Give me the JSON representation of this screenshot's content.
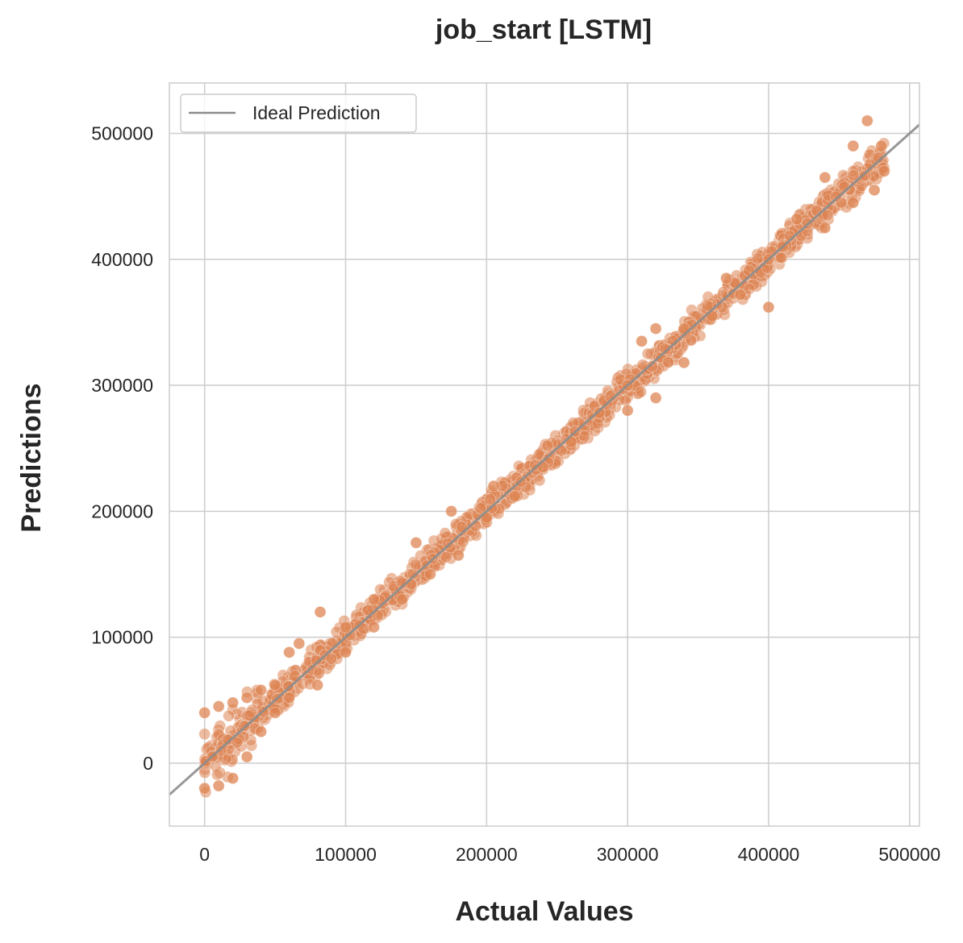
{
  "chart_data": {
    "type": "scatter",
    "title": "job_start [LSTM]",
    "xlabel": "Actual Values",
    "ylabel": "Predictions",
    "xlim": [
      -25000,
      507000
    ],
    "ylim": [
      -50000,
      540000
    ],
    "x_ticks": [
      0,
      100000,
      200000,
      300000,
      400000,
      500000
    ],
    "y_ticks": [
      0,
      100000,
      200000,
      300000,
      400000,
      500000
    ],
    "grid": true,
    "legend_position": "top-left",
    "series": [
      {
        "label_color": "#dd8452",
        "points_description_free": true,
        "trend": [
          [
            0,
            -20000
          ],
          [
            0,
            40000
          ],
          [
            10000,
            -18000
          ],
          [
            10000,
            45000
          ],
          [
            20000,
            -12000
          ],
          [
            20000,
            48000
          ],
          [
            30000,
            5000
          ],
          [
            30000,
            52000
          ],
          [
            40000,
            25000
          ],
          [
            40000,
            58000
          ],
          [
            50000,
            40000
          ],
          [
            50000,
            62000
          ],
          [
            60000,
            52000
          ],
          [
            60000,
            88000
          ],
          [
            67000,
            95000
          ],
          [
            80000,
            62000
          ],
          [
            82000,
            120000
          ],
          [
            100000,
            88000
          ],
          [
            100000,
            108000
          ],
          [
            120000,
            108000
          ],
          [
            120000,
            130000
          ],
          [
            140000,
            130000
          ],
          [
            150000,
            175000
          ],
          [
            160000,
            150000
          ],
          [
            175000,
            200000
          ],
          [
            180000,
            165000
          ],
          [
            200000,
            195000
          ],
          [
            205000,
            220000
          ],
          [
            220000,
            212000
          ],
          [
            240000,
            235000
          ],
          [
            260000,
            255000
          ],
          [
            280000,
            278000
          ],
          [
            300000,
            280000
          ],
          [
            300000,
            300000
          ],
          [
            310000,
            335000
          ],
          [
            320000,
            345000
          ],
          [
            320000,
            290000
          ],
          [
            340000,
            318000
          ],
          [
            340000,
            345000
          ],
          [
            360000,
            355000
          ],
          [
            370000,
            385000
          ],
          [
            380000,
            372000
          ],
          [
            400000,
            362000
          ],
          [
            400000,
            400000
          ],
          [
            410000,
            410000
          ],
          [
            420000,
            432000
          ],
          [
            440000,
            425000
          ],
          [
            440000,
            465000
          ],
          [
            460000,
            445000
          ],
          [
            460000,
            490000
          ],
          [
            470000,
            510000
          ],
          [
            475000,
            455000
          ],
          [
            480000,
            490000
          ],
          [
            482000,
            470000
          ]
        ]
      },
      {
        "name": "Ideal Prediction",
        "color": "#8c8c8c",
        "type": "line",
        "x": [
          -25000,
          507000
        ],
        "y": [
          -25000,
          507000
        ]
      }
    ]
  }
}
